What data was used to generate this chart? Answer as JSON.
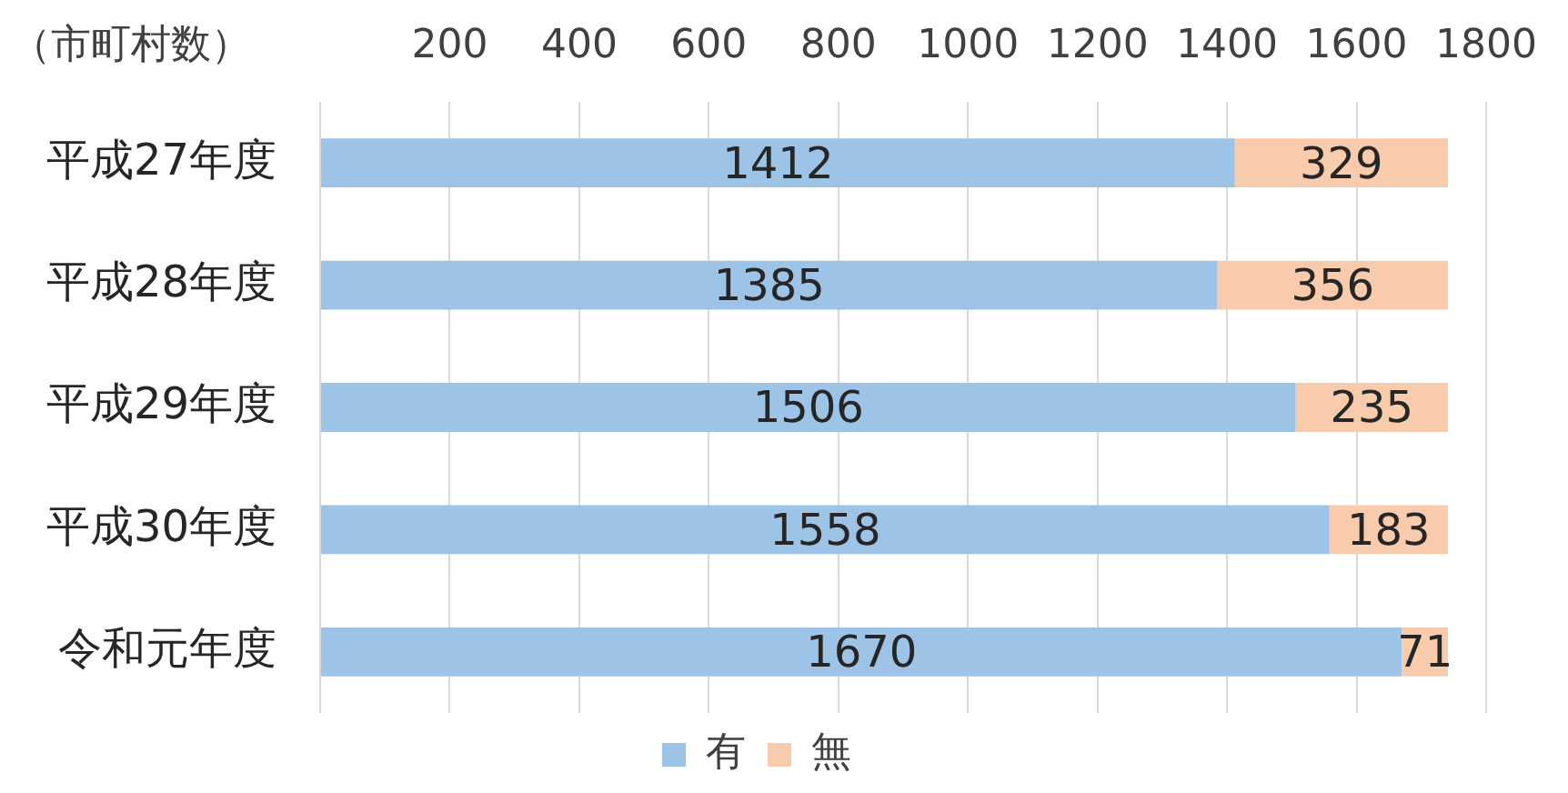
{
  "chart_data": {
    "type": "bar",
    "orientation": "horizontal",
    "stacked": true,
    "xlabel": "（市町村数）",
    "categories": [
      "平成27年度",
      "平成28年度",
      "平成29年度",
      "平成30年度",
      "令和元年度"
    ],
    "series": [
      {
        "name": "有",
        "color": "#9dc3e6",
        "values": [
          1412,
          1385,
          1506,
          1558,
          1670
        ]
      },
      {
        "name": "無",
        "color": "#f8cbad",
        "values": [
          329,
          356,
          235,
          183,
          71
        ]
      }
    ],
    "xlim": [
      0,
      1800
    ],
    "xticks": [
      {
        "value": 0,
        "label": null
      },
      200,
      400,
      600,
      800,
      1000,
      1200,
      1400,
      1600,
      1800
    ],
    "grid": "x",
    "legend": "bottom",
    "data_labels": true
  }
}
